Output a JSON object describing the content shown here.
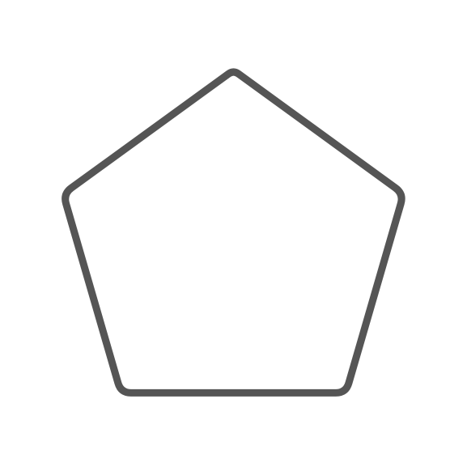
{
  "shape": {
    "kind": "pentagon",
    "stroke_color": "#555555",
    "fill_color": "none",
    "corners": "rounded"
  }
}
